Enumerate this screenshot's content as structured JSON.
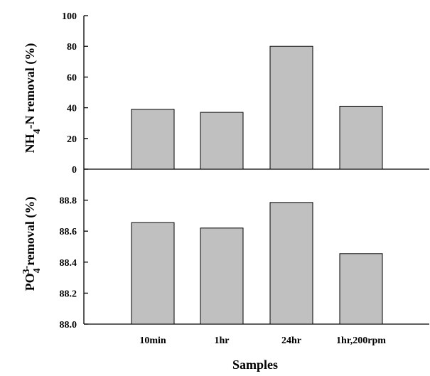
{
  "chart_data": [
    {
      "type": "bar",
      "categories": [
        "10min",
        "1hr",
        "24hr",
        "1hr,200rpm"
      ],
      "values": [
        39,
        37,
        80,
        41
      ],
      "ylim": [
        0,
        100
      ],
      "yticks": [
        "0",
        "20",
        "40",
        "60",
        "80",
        "100"
      ],
      "ylabel": {
        "parts": [
          {
            "text": "NH",
            "sub": false
          },
          {
            "text": "4",
            "sub": true
          },
          {
            "text": "-N removal (%)",
            "sub": false
          }
        ]
      },
      "bar_color": "#c0c0c0",
      "grid": false
    },
    {
      "type": "bar",
      "categories": [
        "10min",
        "1hr",
        "24hr",
        "1hr,200rpm"
      ],
      "values": [
        88.655,
        88.62,
        88.785,
        88.455
      ],
      "ylim": [
        88.0,
        89.0
      ],
      "yticks": [
        "88.0",
        "88.2",
        "88.4",
        "88.6",
        "88.8"
      ],
      "ylabel": {
        "parts": [
          {
            "text": "PO",
            "sub": false
          },
          {
            "text": "4",
            "sub": true
          },
          {
            "text": "3-",
            "sup": true
          },
          {
            "text": "removal (%)",
            "sub": false
          }
        ]
      },
      "xlabel": "Samples",
      "bar_color": "#c0c0c0",
      "grid": false
    }
  ]
}
